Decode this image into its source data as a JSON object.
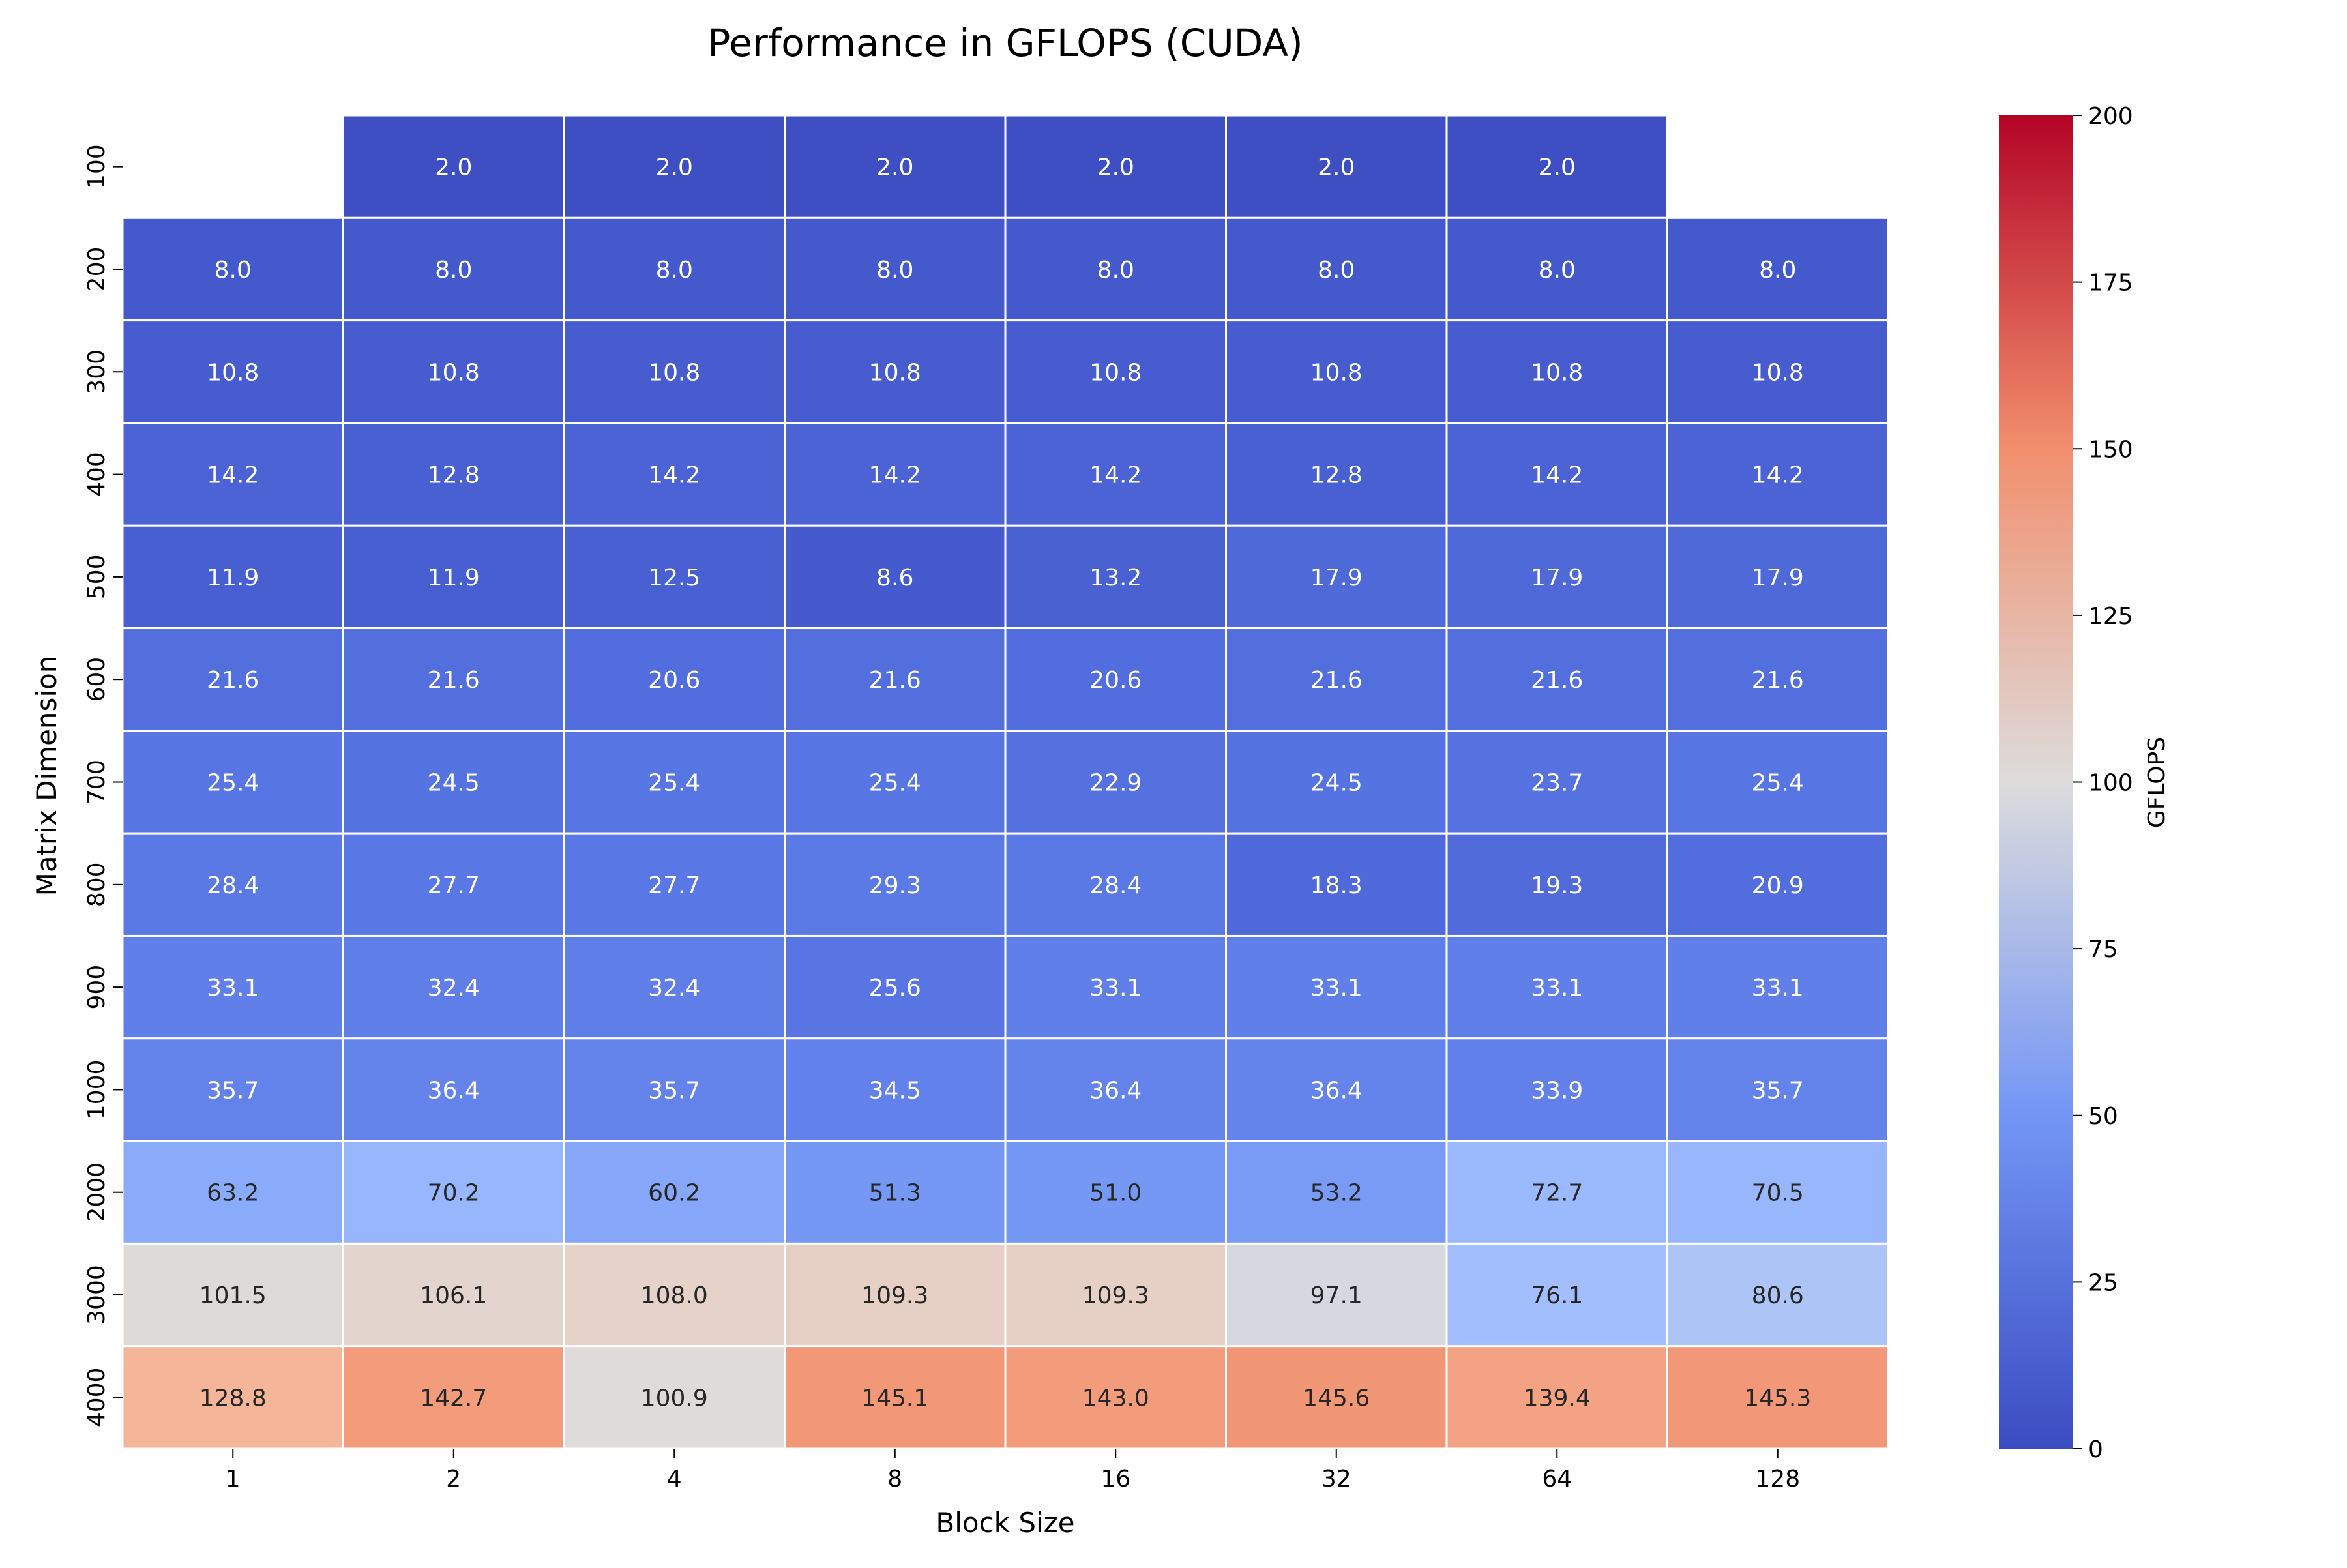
{
  "chart_data": {
    "type": "heatmap",
    "title": "Performance in GFLOPS (CUDA)",
    "xlabel": "Block Size",
    "ylabel": "Matrix Dimension",
    "x_categories": [
      "1",
      "2",
      "4",
      "8",
      "16",
      "32",
      "64",
      "128"
    ],
    "y_categories": [
      "100",
      "200",
      "300",
      "400",
      "500",
      "600",
      "700",
      "800",
      "900",
      "1000",
      "2000",
      "3000",
      "4000"
    ],
    "values": [
      [
        null,
        2.0,
        2.0,
        2.0,
        2.0,
        2.0,
        2.0,
        null
      ],
      [
        8.0,
        8.0,
        8.0,
        8.0,
        8.0,
        8.0,
        8.0,
        8.0
      ],
      [
        10.8,
        10.8,
        10.8,
        10.8,
        10.8,
        10.8,
        10.8,
        10.8
      ],
      [
        14.2,
        12.8,
        14.2,
        14.2,
        14.2,
        12.8,
        14.2,
        14.2
      ],
      [
        11.9,
        11.9,
        12.5,
        8.6,
        13.2,
        17.9,
        17.9,
        17.9
      ],
      [
        21.6,
        21.6,
        20.6,
        21.6,
        20.6,
        21.6,
        21.6,
        21.6
      ],
      [
        25.4,
        24.5,
        25.4,
        25.4,
        22.9,
        24.5,
        23.7,
        25.4
      ],
      [
        28.4,
        27.7,
        27.7,
        29.3,
        28.4,
        18.3,
        19.3,
        20.9
      ],
      [
        33.1,
        32.4,
        32.4,
        25.6,
        33.1,
        33.1,
        33.1,
        33.1
      ],
      [
        35.7,
        36.4,
        35.7,
        34.5,
        36.4,
        36.4,
        33.9,
        35.7
      ],
      [
        63.2,
        70.2,
        60.2,
        51.3,
        51.0,
        53.2,
        72.7,
        70.5
      ],
      [
        101.5,
        106.1,
        108.0,
        109.3,
        109.3,
        97.1,
        76.1,
        80.6
      ],
      [
        128.8,
        142.7,
        100.9,
        145.1,
        143.0,
        145.6,
        139.4,
        145.3
      ]
    ],
    "colormap": "coolwarm",
    "vmin": 0,
    "vmax": 200,
    "colorbar": {
      "label": "GFLOPS",
      "ticks": [
        "0",
        "25",
        "50",
        "75",
        "100",
        "125",
        "150",
        "175",
        "200"
      ]
    },
    "cell_border_color": "#ffffff",
    "grid": false,
    "legend": "colorbar-right"
  }
}
